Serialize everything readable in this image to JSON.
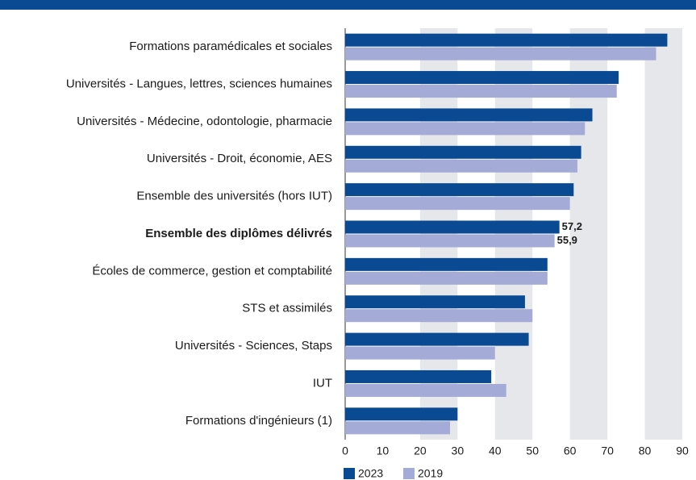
{
  "chart_data": {
    "type": "barh",
    "categories": [
      "Formations paramédicales et sociales",
      "Universités - Langues, lettres, sciences humaines",
      "Universités - Médecine, odontologie, pharmacie",
      "Universités - Droit, économie, AES",
      "Ensemble des universités (hors IUT)",
      "Ensemble des diplômes délivrés",
      "Écoles de commerce, gestion et comptabilité",
      "STS et assimilés",
      "Universités - Sciences, Staps",
      "IUT",
      "Formations d'ingénieurs (1)"
    ],
    "series": [
      {
        "name": "2023",
        "color": "#0a4a93",
        "values": [
          86,
          73,
          66,
          63,
          61,
          57.2,
          54,
          48,
          49,
          39,
          30
        ],
        "value_labels": [
          null,
          null,
          null,
          null,
          null,
          "57,2",
          null,
          null,
          null,
          null,
          null
        ]
      },
      {
        "name": "2019",
        "color": "#a4abd6",
        "values": [
          83,
          72.5,
          64,
          62,
          60,
          55.9,
          54,
          50,
          40,
          43,
          28
        ],
        "value_labels": [
          null,
          null,
          null,
          null,
          null,
          "55,9",
          null,
          null,
          null,
          null,
          null
        ]
      }
    ],
    "xlim": [
      0,
      90
    ],
    "xticks": [
      0,
      10,
      20,
      30,
      40,
      50,
      60,
      70,
      80,
      90
    ],
    "legend": "bottom-left"
  }
}
